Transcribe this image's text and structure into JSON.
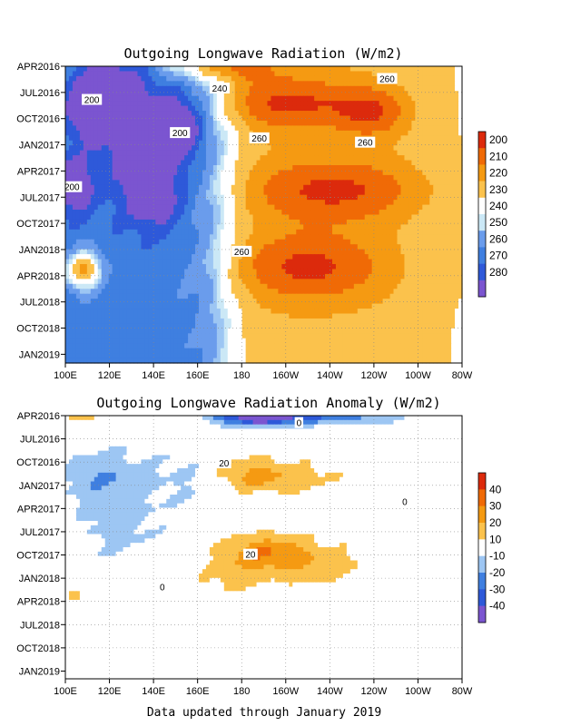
{
  "footer": "Data updated through January 2019",
  "colors": {
    "olr": [
      "#7b55d0",
      "#2e59d9",
      "#3f7fe0",
      "#6a9cec",
      "#9dc6f3",
      "#cbe8f6",
      "#ffffff",
      "#fbc24c",
      "#f59a12",
      "#f06a06",
      "#dc2a0c"
    ],
    "anom": [
      "#7b55d0",
      "#2e59d9",
      "#3f7fe0",
      "#9dc6f3",
      "#ffffff",
      "#fbc24c",
      "#f59a12",
      "#f06a06",
      "#dc2a0c"
    ]
  },
  "chart_data": [
    {
      "type": "heatmap",
      "title": "Outgoing Longwave Radiation (W/m2)",
      "x_ticks": [
        "100E",
        "120E",
        "140E",
        "160E",
        "180",
        "160W",
        "140W",
        "120W",
        "100W",
        "80W"
      ],
      "y_ticks": [
        "APR2016",
        "JUL2016",
        "OCT2016",
        "JAN2017",
        "APR2017",
        "JUL2017",
        "OCT2017",
        "JAN2018",
        "APR2018",
        "JUL2018",
        "OCT2018",
        "JAN2019"
      ],
      "colorbar_ticks": [
        "200",
        "210",
        "220",
        "230",
        "240",
        "250",
        "260",
        "270",
        "280"
      ],
      "contour_labels": [
        {
          "text": "200",
          "lon": 112,
          "t": 3.8
        },
        {
          "text": "200",
          "lon": 152,
          "t": 7.6
        },
        {
          "text": "200",
          "lon": 103,
          "t": 13.8
        },
        {
          "text": "240",
          "lon": 170,
          "t": 2.5
        },
        {
          "text": "260",
          "lon": 246,
          "t": 1.4
        },
        {
          "text": "260",
          "lon": 188,
          "t": 8.2
        },
        {
          "text": "260",
          "lon": 236,
          "t": 8.7
        },
        {
          "text": "260",
          "lon": 180,
          "t": 21.2
        }
      ],
      "features": [
        {
          "lon": 112,
          "t": 4.4,
          "amp": -48,
          "slon": 7,
          "st": 2.5
        },
        {
          "lon": 150,
          "t": 7.2,
          "amp": -45,
          "slon": 8,
          "st": 2.5
        },
        {
          "lon": 104,
          "t": 13.6,
          "amp": -32,
          "slon": 6,
          "st": 2.2
        },
        {
          "lon": 140,
          "t": 14.3,
          "amp": -30,
          "slon": 9,
          "st": 3
        },
        {
          "lon": 128,
          "t": 5,
          "amp": -25,
          "slon": 10,
          "st": 6
        },
        {
          "lon": 165,
          "t": 0,
          "amp": 32,
          "slon": 18,
          "st": 1.2
        },
        {
          "lon": 110,
          "t": 23.3,
          "amp": 42,
          "slon": 4.5,
          "st": 1.6
        },
        {
          "lon": 104,
          "t": 23.7,
          "amp": 20,
          "slon": 4,
          "st": 1.4
        },
        {
          "lon": 200,
          "t": 4.2,
          "amp": 26,
          "slon": 24,
          "st": 2.2
        },
        {
          "lon": 240,
          "t": 5.3,
          "amp": 22,
          "slon": 12,
          "st": 2
        },
        {
          "lon": 222,
          "t": 14.2,
          "amp": 26,
          "slon": 30,
          "st": 2.6
        },
        {
          "lon": 210,
          "t": 23,
          "amp": 26,
          "slon": 26,
          "st": 2.8
        }
      ]
    },
    {
      "type": "heatmap",
      "title": "Outgoing Longwave Radiation Anomaly (W/m2)",
      "x_ticks": [
        "100E",
        "120E",
        "140E",
        "160E",
        "180",
        "160W",
        "140W",
        "120W",
        "100W",
        "80W"
      ],
      "y_ticks": [
        "APR2016",
        "JUL2016",
        "OCT2016",
        "JAN2017",
        "APR2017",
        "JUL2017",
        "OCT2017",
        "JAN2018",
        "APR2018",
        "JUL2018",
        "OCT2018",
        "JAN2019"
      ],
      "colorbar_ticks": [
        "40",
        "30",
        "20",
        "10",
        "-10",
        "-20",
        "-30",
        "-40"
      ],
      "contour_labels": [
        {
          "text": "0",
          "lon": 206,
          "t": 0.9
        },
        {
          "text": "20",
          "lon": 172,
          "t": 6.1
        },
        {
          "text": "0",
          "lon": 254,
          "t": 11.1
        },
        {
          "text": "20",
          "lon": 184,
          "t": 17.9
        },
        {
          "text": "0",
          "lon": 144,
          "t": 22.1
        }
      ],
      "features": [
        {
          "lon": 188,
          "t": 0,
          "amp": -55,
          "slon": 14,
          "st": 0.9
        },
        {
          "lon": 225,
          "t": 0,
          "amp": -25,
          "slon": 22,
          "st": 0.8
        },
        {
          "lon": 108,
          "t": 0,
          "amp": 18,
          "slon": 7,
          "st": 0.6
        },
        {
          "lon": 115,
          "t": 7.5,
          "amp": -16,
          "slon": 14,
          "st": 3
        },
        {
          "lon": 160,
          "t": 7.5,
          "amp": -16,
          "slon": 14,
          "st": 3
        },
        {
          "lon": 125,
          "t": 14,
          "amp": -14,
          "slon": 15,
          "st": 4
        },
        {
          "lon": 178,
          "t": 7.5,
          "amp": 22,
          "slon": 14,
          "st": 2
        },
        {
          "lon": 205,
          "t": 8,
          "amp": 14,
          "slon": 18,
          "st": 1.5
        },
        {
          "lon": 190,
          "t": 17.5,
          "amp": 24,
          "slon": 15,
          "st": 1.7
        },
        {
          "lon": 215,
          "t": 19.5,
          "amp": 14,
          "slon": 20,
          "st": 2.3
        },
        {
          "lon": 175,
          "t": 21,
          "amp": 13,
          "slon": 12,
          "st": 1.6
        },
        {
          "lon": 104,
          "t": 23,
          "amp": 14,
          "slon": 3,
          "st": 1
        }
      ]
    }
  ]
}
